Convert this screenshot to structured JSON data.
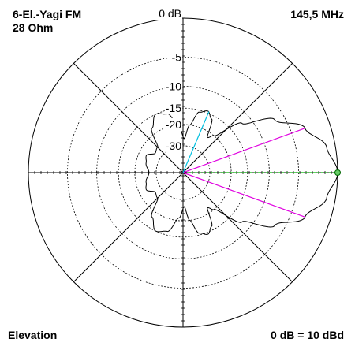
{
  "labels": {
    "antenna": "6-El.-Yagi FM",
    "impedance": "28 Ohm",
    "frequency": "145,5 MHz",
    "view": "Elevation",
    "reference": "0 dB = 10 dBd"
  },
  "rings": [
    {
      "label": "0 dB"
    },
    {
      "label": "-5"
    },
    {
      "label": "-10"
    },
    {
      "label": "-15"
    },
    {
      "label": "-20"
    },
    {
      "label": "-30"
    }
  ],
  "colors": {
    "pattern": "#000000",
    "grid": "#000000",
    "main_lobe_axis": "#00c000",
    "beamwidth_lines": "#e000e0",
    "side_lobe_line": "#00c0e0"
  },
  "chart_data": {
    "type": "polar",
    "plane": "elevation",
    "unit": "dB",
    "ring_levels_db": [
      0,
      -5,
      -10,
      -15,
      -20,
      -30
    ],
    "peak_direction_deg": 0,
    "half_power_lines_deg": [
      -20,
      20
    ],
    "side_lobe_direction_deg": 67,
    "pattern": [
      {
        "angle": 0,
        "db": 0
      },
      {
        "angle": 10,
        "db": -1
      },
      {
        "angle": 20,
        "db": -3
      },
      {
        "angle": 30,
        "db": -6.5
      },
      {
        "angle": 40,
        "db": -12
      },
      {
        "angle": 50,
        "db": -20
      },
      {
        "angle": 55,
        "db": -22
      },
      {
        "angle": 62,
        "db": -16
      },
      {
        "angle": 68,
        "db": -14.5
      },
      {
        "angle": 75,
        "db": -15.5
      },
      {
        "angle": 82,
        "db": -20
      },
      {
        "angle": 88,
        "db": -26
      },
      {
        "angle": 95,
        "db": -21
      },
      {
        "angle": 105,
        "db": -16
      },
      {
        "angle": 115,
        "db": -15
      },
      {
        "angle": 125,
        "db": -18
      },
      {
        "angle": 135,
        "db": -25
      },
      {
        "angle": 145,
        "db": -26
      },
      {
        "angle": 155,
        "db": -23
      },
      {
        "angle": 165,
        "db": -24
      },
      {
        "angle": 180,
        "db": -26
      }
    ]
  }
}
